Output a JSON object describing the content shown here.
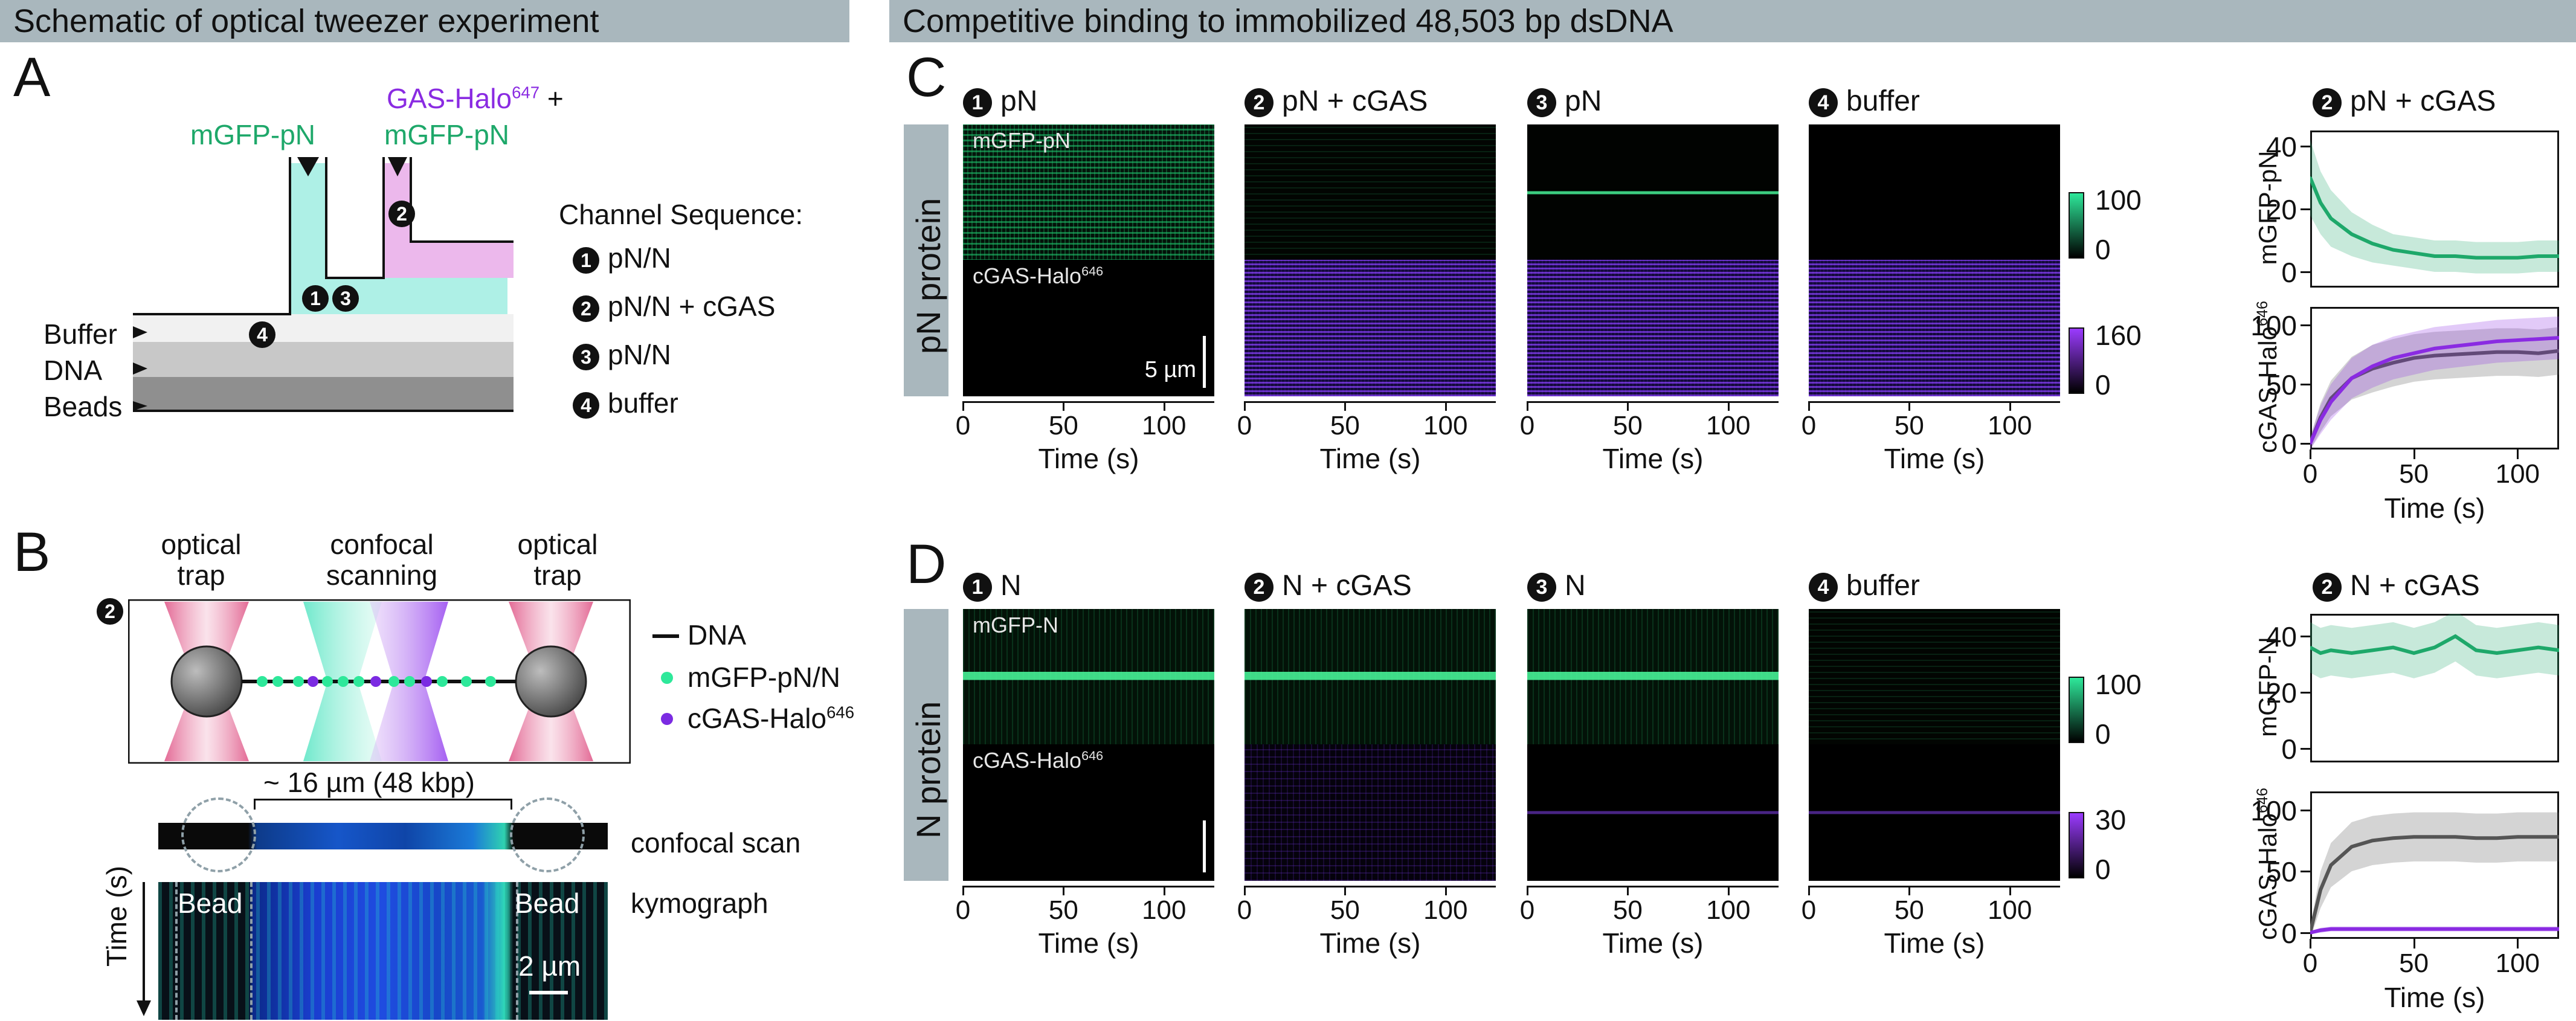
{
  "headers": {
    "left": "Schematic of optical tweezer experiment",
    "right": "Competitive binding to immobilized 48,503 bp dsDNA"
  },
  "panel_labels": {
    "a": "A",
    "b": "B",
    "c": "C",
    "d": "D"
  },
  "panel_a": {
    "flow_label_green": "mGFP-pN",
    "flow_label_purple_line1": "GAS-Halo",
    "flow_label_purple_sup": "647",
    "flow_label_purple_plus": " +",
    "flow_label_purple_line2": "mGFP-pN",
    "lanes": [
      "Buffer",
      "DNA",
      "Beads"
    ],
    "channel_title": "Channel Sequence:",
    "channels": [
      {
        "num": "1",
        "text": "pN/N"
      },
      {
        "num": "2",
        "text": "pN/N + cGAS"
      },
      {
        "num": "3",
        "text": "pN/N"
      },
      {
        "num": "4",
        "text": "buffer"
      }
    ],
    "marker_nums": [
      "1",
      "3",
      "2",
      "4"
    ]
  },
  "panel_b": {
    "labels": [
      "optical\ntrap",
      "confocal\nscanning",
      "optical\ntrap"
    ],
    "label1a": "optical",
    "label1b": "trap",
    "label2a": "confocal",
    "label2b": "scanning",
    "label3a": "optical",
    "label3b": "trap",
    "marker": "2",
    "legend_dna": "DNA",
    "legend_green": "mGFP-pN/N",
    "legend_purple": "cGAS-Halo",
    "legend_purple_sup": "646",
    "span": "~ 16 µm (48 kbp)",
    "confocal_scan": "confocal scan",
    "kymograph": "kymograph",
    "bead": "Bead",
    "time_axis": "Time (s)",
    "scale": "2 µm"
  },
  "panel_c": {
    "kymo_titles": [
      {
        "num": "1",
        "text": "pN"
      },
      {
        "num": "2",
        "text": "pN + cGAS"
      },
      {
        "num": "3",
        "text": "pN"
      },
      {
        "num": "4",
        "text": "buffer"
      }
    ],
    "row_label": "pN protein",
    "kymo_tag_green": "mGFP-pN",
    "kymo_tag_purple": "cGAS-Halo",
    "kymo_tag_sup": "646",
    "scale": "5 µm",
    "cbar_green": [
      "100",
      "0"
    ],
    "cbar_purple": [
      "160",
      "0"
    ],
    "xticks": [
      "0",
      "50",
      "100"
    ],
    "xlabel": "Time (s)",
    "plot_title_num": "2",
    "plot_title": "pN + cGAS",
    "top_ylabel": "mGFP-pN",
    "top_yticks": [
      "40",
      "20",
      "0"
    ],
    "bottom_ylabel": "cGAS-Halo",
    "bottom_ylabel_sup": "646",
    "bottom_yticks": [
      "100",
      "50",
      "0"
    ]
  },
  "panel_d": {
    "kymo_titles": [
      {
        "num": "1",
        "text": "N"
      },
      {
        "num": "2",
        "text": "N + cGAS"
      },
      {
        "num": "3",
        "text": "N"
      },
      {
        "num": "4",
        "text": "buffer"
      }
    ],
    "row_label": "N protein",
    "kymo_tag_green": "mGFP-N",
    "kymo_tag_purple": "cGAS-Halo",
    "kymo_tag_sup": "646",
    "cbar_green": [
      "100",
      "0"
    ],
    "cbar_purple": [
      "30",
      "0"
    ],
    "xticks": [
      "0",
      "50",
      "100"
    ],
    "xlabel": "Time (s)",
    "plot_title_num": "2",
    "plot_title": "N + cGAS",
    "top_ylabel": "mGFP-N",
    "top_yticks": [
      "40",
      "20",
      "0"
    ],
    "bottom_ylabel": "cGAS-Halo",
    "bottom_ylabel_sup": "646",
    "bottom_yticks": [
      "100",
      "50",
      "0"
    ]
  },
  "colors": {
    "green": "#1ea86a",
    "purple": "#8a2be2",
    "grey_curve": "#555555",
    "header_bg": "#a9b7bd",
    "cyan_channel": "#aef0e6",
    "pink_channel": "#ecb8ec"
  },
  "chart_data": [
    {
      "type": "line",
      "title": "pN + cGAS",
      "xlabel": "Time (s)",
      "ylabel": "mGFP-pN",
      "xlim": [
        0,
        120
      ],
      "ylim": [
        -5,
        45
      ],
      "series": [
        {
          "color": "#1ea86a",
          "x": [
            0,
            5,
            10,
            20,
            30,
            40,
            50,
            60,
            70,
            80,
            90,
            100,
            110,
            120
          ],
          "y": [
            30,
            22,
            17,
            12,
            9,
            7,
            6,
            5,
            5,
            4.5,
            4.5,
            4.5,
            5,
            5
          ],
          "spread": [
            12,
            10,
            9,
            7,
            6,
            5,
            5,
            5,
            5,
            5,
            5,
            5,
            5,
            5
          ]
        }
      ]
    },
    {
      "type": "line",
      "title": "",
      "xlabel": "Time (s)",
      "ylabel": "cGAS-Halo646",
      "xlim": [
        0,
        120
      ],
      "ylim": [
        -5,
        115
      ],
      "series": [
        {
          "color": "#555555",
          "x": [
            0,
            5,
            10,
            20,
            30,
            40,
            50,
            60,
            70,
            80,
            90,
            100,
            110,
            120
          ],
          "y": [
            0,
            22,
            38,
            55,
            63,
            68,
            72,
            74,
            75,
            76,
            77,
            77,
            76,
            78
          ],
          "spread": [
            5,
            12,
            15,
            18,
            20,
            20,
            20,
            20,
            20,
            20,
            20,
            20,
            20,
            20
          ]
        },
        {
          "color": "#8a2be2",
          "x": [
            0,
            5,
            10,
            20,
            30,
            40,
            50,
            60,
            70,
            80,
            90,
            100,
            110,
            120
          ],
          "y": [
            0,
            20,
            35,
            55,
            65,
            72,
            76,
            80,
            82,
            84,
            86,
            87,
            88,
            89
          ],
          "spread": [
            5,
            12,
            15,
            17,
            18,
            18,
            18,
            18,
            18,
            18,
            18,
            18,
            18,
            18
          ]
        }
      ]
    },
    {
      "type": "line",
      "title": "N + cGAS",
      "xlabel": "Time (s)",
      "ylabel": "mGFP-N",
      "xlim": [
        0,
        120
      ],
      "ylim": [
        -5,
        48
      ],
      "series": [
        {
          "color": "#1ea86a",
          "x": [
            0,
            5,
            10,
            20,
            30,
            40,
            50,
            60,
            70,
            80,
            90,
            100,
            110,
            120
          ],
          "y": [
            36,
            34,
            35,
            34,
            35,
            36,
            34,
            36,
            40,
            35,
            34,
            35,
            36,
            35
          ],
          "spread": [
            9,
            9,
            9,
            9,
            9,
            9,
            9,
            9,
            9,
            9,
            9,
            9,
            9,
            9
          ]
        }
      ]
    },
    {
      "type": "line",
      "title": "",
      "xlabel": "Time (s)",
      "ylabel": "cGAS-Halo646",
      "xlim": [
        0,
        120
      ],
      "ylim": [
        -5,
        115
      ],
      "series": [
        {
          "color": "#555555",
          "x": [
            0,
            5,
            10,
            20,
            30,
            40,
            50,
            60,
            70,
            80,
            90,
            100,
            110,
            120
          ],
          "y": [
            0,
            35,
            55,
            70,
            75,
            77,
            78,
            78,
            78,
            77,
            77,
            78,
            78,
            78
          ],
          "spread": [
            5,
            15,
            18,
            20,
            20,
            20,
            20,
            20,
            20,
            20,
            20,
            20,
            20,
            20
          ]
        },
        {
          "color": "#8a2be2",
          "x": [
            0,
            5,
            10,
            20,
            30,
            40,
            50,
            60,
            70,
            80,
            90,
            100,
            110,
            120
          ],
          "y": [
            0,
            2,
            3,
            3,
            3,
            3,
            3,
            3,
            3,
            3,
            3,
            3,
            3,
            3
          ],
          "spread": [
            1,
            2,
            2,
            2,
            2,
            2,
            2,
            2,
            2,
            2,
            2,
            2,
            2,
            2
          ]
        }
      ]
    }
  ]
}
